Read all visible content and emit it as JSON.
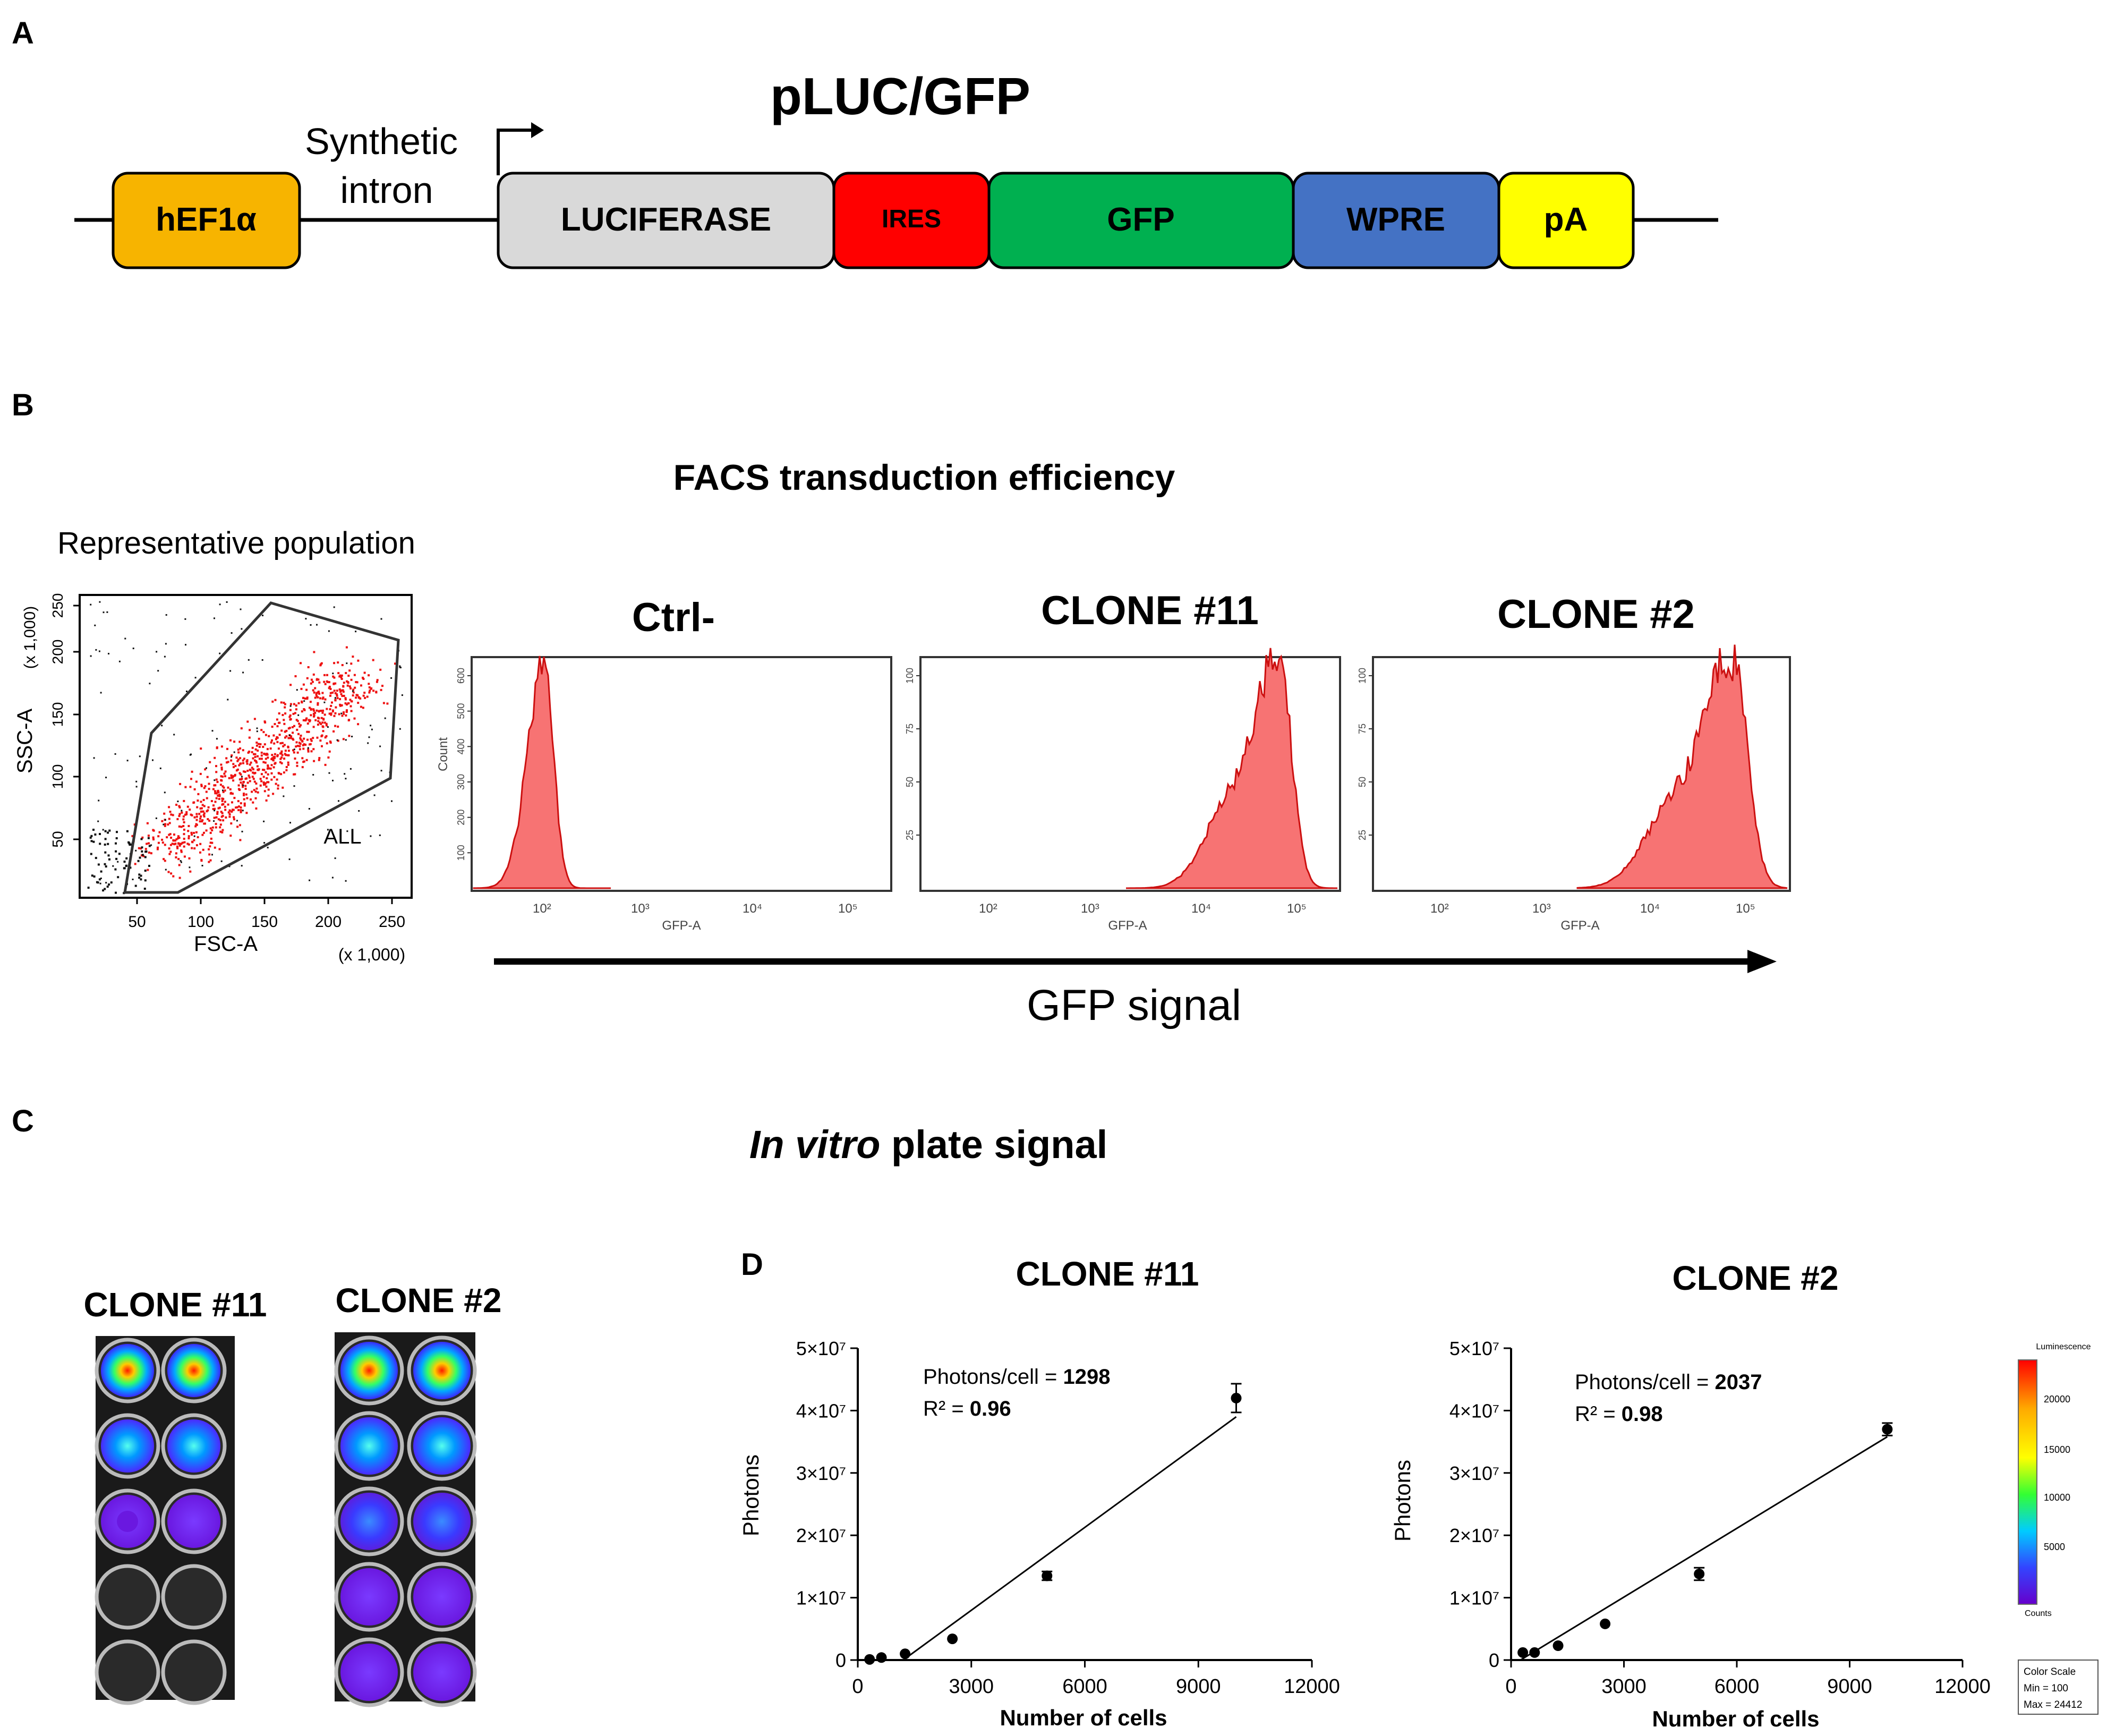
{
  "panel_letters": {
    "a": "A",
    "b": "B",
    "c": "C",
    "d": "D"
  },
  "construct": {
    "title": "pLUC/GFP",
    "intron_line1": "Synthetic",
    "intron_line2": "intron",
    "elements": [
      {
        "label": "hEF1α",
        "color": "#f7b400"
      },
      {
        "label": "LUCIFERASE",
        "color": "#d9d9d9"
      },
      {
        "label": "IRES",
        "color": "#ff0000"
      },
      {
        "label": "GFP",
        "color": "#00b050"
      },
      {
        "label": "WPRE",
        "color": "#4472c4"
      },
      {
        "label": "pA",
        "color": "#ffff00"
      }
    ]
  },
  "facs": {
    "title": "FACS transduction efficiency",
    "rep_title": "Representative population",
    "scatter": {
      "xlabel": "FSC-A",
      "ylabel": "SSC-A",
      "x_unit": "(x 1,000)",
      "y_unit": "(x 1,000)",
      "x_ticks": [
        "50",
        "100",
        "150",
        "200",
        "250"
      ],
      "y_ticks": [
        "50",
        "100",
        "150",
        "200",
        "250"
      ],
      "gate_label": "ALL"
    },
    "histograms": [
      {
        "title": "Ctrl-",
        "ylabel": "Count",
        "xlabel": "GFP-A",
        "x_ticks": [
          "10²",
          "10³",
          "10⁴",
          "10⁵"
        ],
        "y_ticks": [
          "100",
          "200",
          "300",
          "400",
          "500",
          "600"
        ]
      },
      {
        "title": "CLONE #11",
        "ylabel": "",
        "xlabel": "GFP-A",
        "x_ticks": [
          "10²",
          "10³",
          "10⁴",
          "10⁵"
        ],
        "y_ticks": [
          "25",
          "50",
          "75",
          "100"
        ]
      },
      {
        "title": "CLONE #2",
        "ylabel": "",
        "xlabel": "GFP-A",
        "x_ticks": [
          "10²",
          "10³",
          "10⁴",
          "10⁵"
        ],
        "y_ticks": [
          "25",
          "50",
          "75",
          "100"
        ]
      }
    ],
    "arrow_label": "GFP signal"
  },
  "plate": {
    "title_italic": "In vitro",
    "title_rest": " plate signal",
    "clone_labels": [
      "CLONE #11",
      "CLONE #2"
    ]
  },
  "colorscale": {
    "title": "Luminescence",
    "ticks": [
      "20000",
      "15000",
      "10000",
      "5000"
    ],
    "units": "Counts",
    "box_lines": [
      "Color Scale",
      "Min = 100",
      "Max = 24412"
    ]
  },
  "chart_data": [
    {
      "type": "scatter",
      "title": "CLONE #11",
      "xlabel": "Number of cells",
      "ylabel": "Photons",
      "xlim": [
        0,
        12000
      ],
      "ylim": [
        0,
        50000000
      ],
      "x_ticks": [
        "0",
        "3000",
        "6000",
        "9000",
        "12000"
      ],
      "y_ticks": [
        "0",
        "1×10⁷",
        "2×10⁷",
        "3×10⁷",
        "4×10⁷",
        "5×10⁷"
      ],
      "annotation_label": "Photons/cell = ",
      "annotation_value": "1298",
      "r2_label": "R² = ",
      "r2_value": "0.96",
      "x": [
        312,
        625,
        1250,
        2500,
        5000,
        10000
      ],
      "y": [
        100000,
        400000,
        1000000,
        3400000,
        13500000,
        42000000
      ],
      "err": [
        0,
        0,
        0,
        0,
        700000,
        2300000
      ],
      "fit_line": {
        "x": [
          1200,
          10000
        ],
        "y": [
          0,
          39000000
        ]
      }
    },
    {
      "type": "scatter",
      "title": "CLONE #2",
      "xlabel": "Number of cells",
      "ylabel": "Photons",
      "xlim": [
        0,
        12000
      ],
      "ylim": [
        0,
        50000000
      ],
      "x_ticks": [
        "0",
        "3000",
        "6000",
        "9000",
        "12000"
      ],
      "y_ticks": [
        "0",
        "1×10⁷",
        "2×10⁷",
        "3×10⁷",
        "4×10⁷",
        "5×10⁷"
      ],
      "annotation_label": "Photons/cell = ",
      "annotation_value": "2037",
      "r2_label": "R² = ",
      "r2_value": "0.98",
      "x": [
        312,
        625,
        1250,
        2500,
        5000,
        10000
      ],
      "y": [
        1200000,
        1200000,
        2300000,
        5800000,
        13800000,
        37000000
      ],
      "err": [
        0,
        0,
        0,
        0,
        1000000,
        1000000
      ],
      "fit_line": {
        "x": [
          250,
          10000
        ],
        "y": [
          0,
          35800000
        ]
      }
    }
  ]
}
